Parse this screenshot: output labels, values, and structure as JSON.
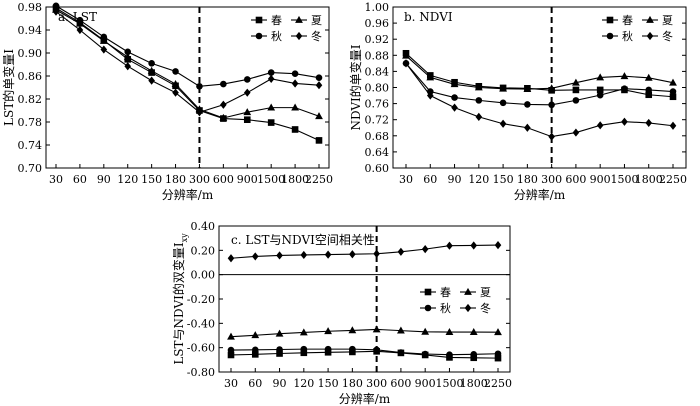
{
  "chart_data": [
    {
      "type": "line",
      "title": "a. LST",
      "xlabel": "分辨率/m",
      "ylabel": "LST的单变量I",
      "categories": [
        "30",
        "60",
        "90",
        "120",
        "150",
        "180",
        "300",
        "600",
        "900",
        "1500",
        "1800",
        "2250"
      ],
      "ylim": [
        0.7,
        0.98
      ],
      "yticks": [
        "0.70",
        "0.74",
        "0.78",
        "0.82",
        "0.86",
        "0.90",
        "0.94",
        "0.98"
      ],
      "divider_after": "300",
      "legend": "top-right",
      "series": [
        {
          "name": "春",
          "marker": "square",
          "values": [
            0.978,
            0.953,
            0.922,
            0.889,
            0.866,
            0.843,
            0.8,
            0.786,
            0.784,
            0.779,
            0.767,
            0.748
          ]
        },
        {
          "name": "夏",
          "marker": "triangle",
          "values": [
            0.975,
            0.951,
            0.921,
            0.893,
            0.869,
            0.846,
            0.802,
            0.787,
            0.797,
            0.805,
            0.805,
            0.79
          ]
        },
        {
          "name": "秋",
          "marker": "circle",
          "values": [
            0.982,
            0.957,
            0.928,
            0.902,
            0.882,
            0.868,
            0.842,
            0.846,
            0.854,
            0.866,
            0.864,
            0.857
          ]
        },
        {
          "name": "冬",
          "marker": "diamond",
          "values": [
            0.972,
            0.94,
            0.906,
            0.877,
            0.852,
            0.831,
            0.797,
            0.81,
            0.831,
            0.855,
            0.847,
            0.844
          ]
        }
      ]
    },
    {
      "type": "line",
      "title": "b. NDVI",
      "xlabel": "分辨率/m",
      "ylabel": "NDVI的单变量I",
      "categories": [
        "30",
        "60",
        "90",
        "120",
        "150",
        "180",
        "300",
        "600",
        "900",
        "1500",
        "1800",
        "2250"
      ],
      "ylim": [
        0.6,
        1.0
      ],
      "yticks": [
        "0.60",
        "0.64",
        "0.68",
        "0.72",
        "0.76",
        "0.80",
        "0.84",
        "0.88",
        "0.92",
        "0.96",
        "1.00"
      ],
      "divider_after": "300",
      "legend": "top-right",
      "series": [
        {
          "name": "春",
          "marker": "square",
          "values": [
            0.885,
            0.83,
            0.813,
            0.803,
            0.799,
            0.798,
            0.793,
            0.794,
            0.794,
            0.794,
            0.782,
            0.777
          ]
        },
        {
          "name": "夏",
          "marker": "triangle",
          "values": [
            0.879,
            0.825,
            0.808,
            0.8,
            0.797,
            0.796,
            0.798,
            0.812,
            0.825,
            0.828,
            0.824,
            0.812
          ]
        },
        {
          "name": "秋",
          "marker": "circle",
          "values": [
            0.86,
            0.79,
            0.775,
            0.768,
            0.762,
            0.758,
            0.757,
            0.768,
            0.781,
            0.797,
            0.794,
            0.79
          ]
        },
        {
          "name": "冬",
          "marker": "diamond",
          "values": [
            0.86,
            0.78,
            0.75,
            0.727,
            0.71,
            0.7,
            0.678,
            0.688,
            0.706,
            0.715,
            0.712,
            0.705
          ]
        }
      ]
    },
    {
      "type": "line",
      "title": "c. LST与NDVI空间相关性",
      "xlabel": "分辨率/m",
      "ylabel": "LST与NDVI的双变量I",
      "ylabel_sub": "xy",
      "categories": [
        "30",
        "60",
        "90",
        "120",
        "150",
        "180",
        "300",
        "600",
        "900",
        "1500",
        "1800",
        "2250"
      ],
      "ylim": [
        -0.8,
        0.4
      ],
      "yticks": [
        "-0.80",
        "-0.60",
        "-0.40",
        "-0.20",
        "0.00",
        "0.20",
        "0.40"
      ],
      "divider_after": "300",
      "legend": "right",
      "series": [
        {
          "name": "春",
          "marker": "square",
          "values": [
            -0.66,
            -0.655,
            -0.648,
            -0.642,
            -0.638,
            -0.635,
            -0.63,
            -0.643,
            -0.66,
            -0.68,
            -0.683,
            -0.686
          ]
        },
        {
          "name": "夏",
          "marker": "triangle",
          "values": [
            -0.51,
            -0.498,
            -0.485,
            -0.475,
            -0.465,
            -0.458,
            -0.45,
            -0.46,
            -0.47,
            -0.472,
            -0.472,
            -0.473
          ]
        },
        {
          "name": "秋",
          "marker": "circle",
          "values": [
            -0.62,
            -0.618,
            -0.615,
            -0.612,
            -0.612,
            -0.612,
            -0.618,
            -0.64,
            -0.652,
            -0.658,
            -0.655,
            -0.65
          ]
        },
        {
          "name": "冬",
          "marker": "diamond",
          "values": [
            0.135,
            0.15,
            0.158,
            0.162,
            0.165,
            0.168,
            0.172,
            0.188,
            0.21,
            0.238,
            0.24,
            0.243
          ]
        }
      ]
    }
  ]
}
